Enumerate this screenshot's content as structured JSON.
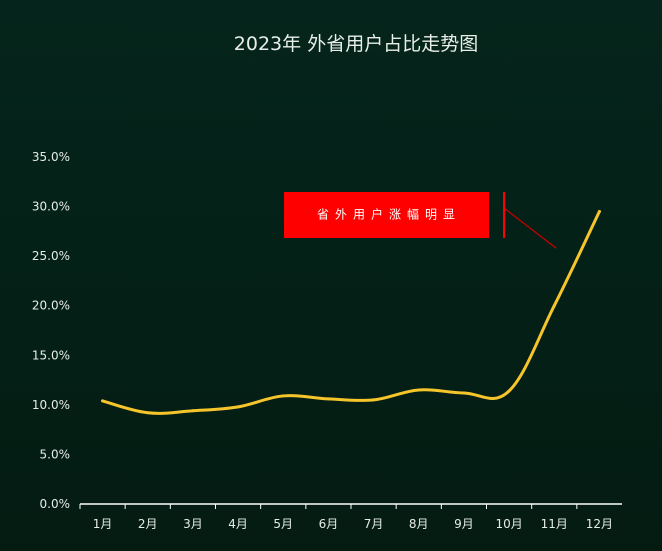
{
  "chart_data": {
    "type": "line",
    "title": "2023年 外省用户占比走势图",
    "xlabel": "",
    "ylabel": "",
    "categories": [
      "1月",
      "2月",
      "3月",
      "4月",
      "5月",
      "6月",
      "7月",
      "8月",
      "9月",
      "10月",
      "11月",
      "12月"
    ],
    "series": [
      {
        "values": [
          10.4,
          9.2,
          9.4,
          9.8,
          10.9,
          10.6,
          10.5,
          11.5,
          11.2,
          11.4,
          20.0,
          29.5
        ]
      }
    ],
    "ylim": [
      0,
      35
    ],
    "yticks": [
      "0.0%",
      "5.0%",
      "10.0%",
      "15.0%",
      "20.0%",
      "25.0%",
      "30.0%",
      "35.0%"
    ],
    "grid": false,
    "annotation": {
      "text": "省外用户涨幅明显",
      "target_category": "11月",
      "target_value": 25.8
    },
    "colors": {
      "line": "#f5c52b",
      "annotation_box": "#ff0000",
      "axis": "#ffffff",
      "text": "#e6ece7"
    }
  }
}
